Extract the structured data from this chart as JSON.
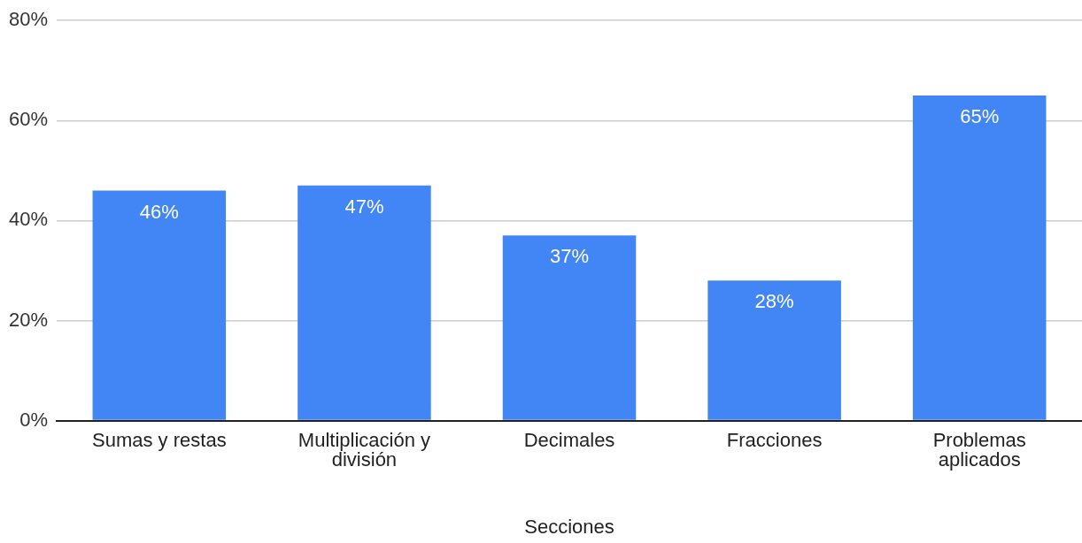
{
  "chart_data": {
    "type": "bar",
    "xlabel": "Secciones",
    "categories": [
      "Sumas y restas",
      "Multiplicación y división",
      "Decimales",
      "Fracciones",
      "Problemas aplicados"
    ],
    "values": [
      46,
      47,
      37,
      28,
      65
    ],
    "value_labels": [
      "46%",
      "47%",
      "37%",
      "28%",
      "65%"
    ],
    "color": "#4285f4",
    "ylim": [
      0,
      80
    ],
    "yticks": [
      {
        "value": 0,
        "label": "0%"
      },
      {
        "value": 20,
        "label": "20%"
      },
      {
        "value": 40,
        "label": "40%"
      },
      {
        "value": 60,
        "label": "60%"
      },
      {
        "value": 80,
        "label": "80%"
      }
    ],
    "grid": "y",
    "legend": false
  }
}
